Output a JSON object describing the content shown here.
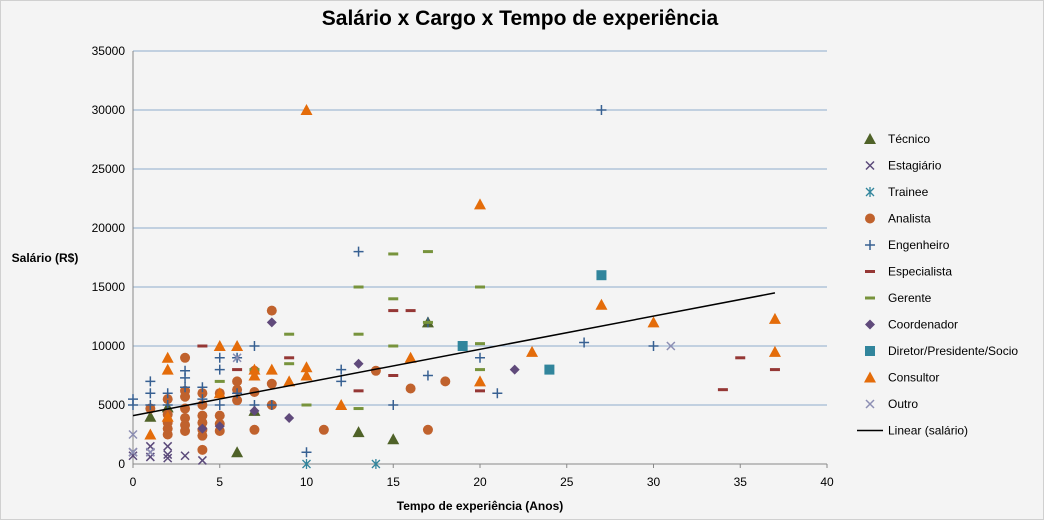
{
  "chart_data": {
    "type": "scatter",
    "title": "Salário x Cargo x Tempo de experiência",
    "xlabel": "Tempo de experiência (Anos)",
    "ylabel": "Salário (R$)",
    "xlim": [
      0,
      40
    ],
    "ylim": [
      0,
      35000
    ],
    "xticks": [
      "0",
      "5",
      "10",
      "15",
      "20",
      "25",
      "30",
      "35",
      "40"
    ],
    "yticks": [
      "0",
      "5000",
      "10000",
      "15000",
      "20000",
      "25000",
      "30000",
      "35000"
    ],
    "grid": "horizontal",
    "legend_position": "right",
    "series": [
      {
        "name": "Técnico",
        "color": "#4f6228",
        "marker": "triangle",
        "points": [
          [
            1,
            4000
          ],
          [
            2,
            4800
          ],
          [
            6,
            1000
          ],
          [
            7,
            4500
          ],
          [
            13,
            2700
          ],
          [
            15,
            2100
          ],
          [
            17,
            12000
          ]
        ]
      },
      {
        "name": "Estagiário",
        "color": "#5b4a7a",
        "marker": "x",
        "points": [
          [
            0,
            1000
          ],
          [
            0,
            700
          ],
          [
            1,
            1000
          ],
          [
            1,
            600
          ],
          [
            1,
            1500
          ],
          [
            2,
            1500
          ],
          [
            2,
            800
          ],
          [
            2,
            500
          ],
          [
            3,
            700
          ],
          [
            4,
            300
          ]
        ]
      },
      {
        "name": "Trainee",
        "color": "#31859c",
        "marker": "asterisk",
        "points": [
          [
            10,
            0
          ],
          [
            14,
            0
          ]
        ]
      },
      {
        "name": "Analista",
        "color": "#c0622d",
        "marker": "circle",
        "points": [
          [
            1,
            4700
          ],
          [
            2,
            2500
          ],
          [
            2,
            3000
          ],
          [
            2,
            3500
          ],
          [
            2,
            4200
          ],
          [
            2,
            5500
          ],
          [
            3,
            2800
          ],
          [
            3,
            3300
          ],
          [
            3,
            3900
          ],
          [
            3,
            4700
          ],
          [
            3,
            5700
          ],
          [
            3,
            6200
          ],
          [
            3,
            9000
          ],
          [
            4,
            2400
          ],
          [
            4,
            2900
          ],
          [
            4,
            3500
          ],
          [
            4,
            4100
          ],
          [
            4,
            5000
          ],
          [
            4,
            6000
          ],
          [
            4,
            1200
          ],
          [
            5,
            2800
          ],
          [
            5,
            3400
          ],
          [
            5,
            4100
          ],
          [
            5,
            6000
          ],
          [
            6,
            5400
          ],
          [
            6,
            6300
          ],
          [
            6,
            7000
          ],
          [
            7,
            2900
          ],
          [
            7,
            6100
          ],
          [
            7,
            7900
          ],
          [
            8,
            5000
          ],
          [
            8,
            6800
          ],
          [
            8,
            13000
          ],
          [
            11,
            2900
          ],
          [
            14,
            7900
          ],
          [
            16,
            6400
          ],
          [
            17,
            2900
          ],
          [
            18,
            7000
          ]
        ]
      },
      {
        "name": "Engenheiro",
        "color": "#376092",
        "marker": "plus",
        "points": [
          [
            0,
            5000
          ],
          [
            0,
            5500
          ],
          [
            1,
            5000
          ],
          [
            1,
            6000
          ],
          [
            1,
            7000
          ],
          [
            2,
            5000
          ],
          [
            2,
            6000
          ],
          [
            3,
            6500
          ],
          [
            3,
            7300
          ],
          [
            3,
            7900
          ],
          [
            4,
            5500
          ],
          [
            4,
            6500
          ],
          [
            5,
            5000
          ],
          [
            5,
            8000
          ],
          [
            5,
            9000
          ],
          [
            6,
            9000
          ],
          [
            6,
            6000
          ],
          [
            7,
            5000
          ],
          [
            7,
            10000
          ],
          [
            8,
            5000
          ],
          [
            10,
            1000
          ],
          [
            12,
            7000
          ],
          [
            12,
            8000
          ],
          [
            13,
            18000
          ],
          [
            15,
            5000
          ],
          [
            17,
            7500
          ],
          [
            17,
            12000
          ],
          [
            20,
            9000
          ],
          [
            21,
            6000
          ],
          [
            26,
            10300
          ],
          [
            27,
            30000
          ],
          [
            30,
            10000
          ]
        ]
      },
      {
        "name": "Especialista",
        "color": "#953735",
        "marker": "dash",
        "points": [
          [
            4,
            10000
          ],
          [
            6,
            8000
          ],
          [
            9,
            9000
          ],
          [
            13,
            6200
          ],
          [
            15,
            13000
          ],
          [
            15,
            7500
          ],
          [
            16,
            13000
          ],
          [
            20,
            6200
          ],
          [
            34,
            6300
          ],
          [
            35,
            9000
          ],
          [
            37,
            8000
          ]
        ]
      },
      {
        "name": "Gerente",
        "color": "#77933c",
        "marker": "dash",
        "points": [
          [
            5,
            7000
          ],
          [
            7,
            8000
          ],
          [
            9,
            11000
          ],
          [
            9,
            8500
          ],
          [
            10,
            5000
          ],
          [
            13,
            4700
          ],
          [
            13,
            11000
          ],
          [
            13,
            15000
          ],
          [
            15,
            10000
          ],
          [
            15,
            14000
          ],
          [
            15,
            17800
          ],
          [
            17,
            12000
          ],
          [
            17,
            18000
          ],
          [
            20,
            10200
          ],
          [
            20,
            15000
          ],
          [
            20,
            8000
          ]
        ]
      },
      {
        "name": "Coordenador",
        "color": "#604a7b",
        "marker": "diamond",
        "points": [
          [
            4,
            3000
          ],
          [
            5,
            3200
          ],
          [
            7,
            4500
          ],
          [
            8,
            12000
          ],
          [
            9,
            3900
          ],
          [
            13,
            8500
          ],
          [
            22,
            8000
          ]
        ]
      },
      {
        "name": "Diretor/Presidente/Socio",
        "color": "#31859c",
        "marker": "square",
        "points": [
          [
            19,
            10000
          ],
          [
            24,
            8000
          ],
          [
            27,
            16000
          ]
        ]
      },
      {
        "name": "Consultor",
        "color": "#e46c0a",
        "marker": "triangle",
        "points": [
          [
            1,
            2500
          ],
          [
            2,
            4000
          ],
          [
            2,
            8000
          ],
          [
            2,
            9000
          ],
          [
            5,
            6000
          ],
          [
            5,
            10000
          ],
          [
            6,
            10000
          ],
          [
            7,
            7500
          ],
          [
            7,
            8000
          ],
          [
            8,
            8000
          ],
          [
            9,
            7000
          ],
          [
            10,
            30000
          ],
          [
            10,
            7500
          ],
          [
            10,
            8200
          ],
          [
            12,
            5000
          ],
          [
            16,
            9000
          ],
          [
            20,
            22000
          ],
          [
            20,
            7000
          ],
          [
            23,
            9500
          ],
          [
            27,
            13500
          ],
          [
            30,
            12000
          ],
          [
            37,
            12300
          ],
          [
            37,
            9500
          ]
        ]
      },
      {
        "name": "Outro",
        "color": "#8d8fb4",
        "marker": "x",
        "points": [
          [
            0,
            2500
          ],
          [
            0,
            1000
          ],
          [
            1,
            1000
          ],
          [
            6,
            9000
          ],
          [
            31,
            10000
          ]
        ]
      }
    ],
    "trendline": {
      "name": "Linear (salário)",
      "color": "#000000",
      "x": [
        0,
        37
      ],
      "y": [
        4100,
        14500
      ]
    }
  }
}
